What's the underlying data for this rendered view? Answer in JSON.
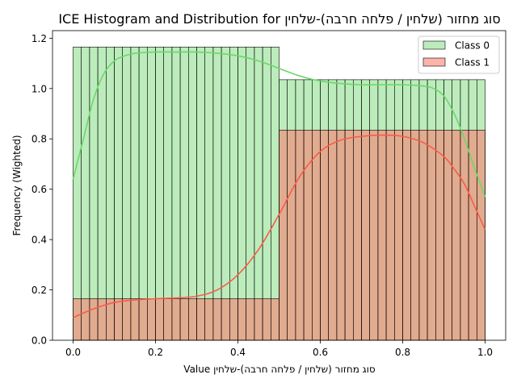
{
  "chart_data": {
    "type": "bar",
    "title": "ICE Histogram and Distribution for סוג מחזור (שלחין / פלחה חרבה)-שלחין",
    "xlabel": "סוג מחזור (שלחין / פלחה חרבה)-שלחין Value",
    "ylabel": "Frequency (Wighted)",
    "xlim": [
      -0.05,
      1.05
    ],
    "ylim": [
      0,
      1.23
    ],
    "xticks": [
      0.0,
      0.2,
      0.4,
      0.6,
      0.8,
      1.0
    ],
    "xtick_labels": [
      "0.0",
      "0.2",
      "0.4",
      "0.6",
      "0.8",
      "1.0"
    ],
    "yticks": [
      0.0,
      0.2,
      0.4,
      0.6,
      0.8,
      1.0,
      1.2
    ],
    "ytick_labels": [
      "0.0",
      "0.2",
      "0.4",
      "0.6",
      "0.8",
      "1.0",
      "1.2"
    ],
    "bin_edges": [
      0.0,
      0.02,
      0.04,
      0.06,
      0.08,
      0.1,
      0.12,
      0.14,
      0.16,
      0.18,
      0.2,
      0.22,
      0.24,
      0.26,
      0.28,
      0.3,
      0.32,
      0.34,
      0.36,
      0.38,
      0.4,
      0.42,
      0.44,
      0.46,
      0.48,
      0.5,
      0.52,
      0.54,
      0.56,
      0.58,
      0.6,
      0.62,
      0.64,
      0.66,
      0.68,
      0.7,
      0.72,
      0.74,
      0.76,
      0.78,
      0.8,
      0.82,
      0.84,
      0.86,
      0.88,
      0.9,
      0.92,
      0.94,
      0.96,
      0.98,
      1.0
    ],
    "legend_position": "upper right",
    "series": [
      {
        "name": "Class 0",
        "color": "#90e090",
        "line_color": "#6ad86a",
        "bin_values": [
          1.165,
          1.165,
          1.165,
          1.165,
          1.165,
          1.165,
          1.165,
          1.165,
          1.165,
          1.165,
          1.165,
          1.165,
          1.165,
          1.165,
          1.165,
          1.165,
          1.165,
          1.165,
          1.165,
          1.165,
          1.165,
          1.165,
          1.165,
          1.165,
          1.165,
          1.035,
          1.035,
          1.035,
          1.035,
          1.035,
          1.035,
          1.035,
          1.035,
          1.035,
          1.035,
          1.035,
          1.035,
          1.035,
          1.035,
          1.035,
          1.035,
          1.035,
          1.035,
          1.035,
          1.035,
          1.035,
          1.035,
          1.035,
          1.035,
          1.035
        ],
        "kde_x": [
          0.0,
          0.025,
          0.05,
          0.075,
          0.1,
          0.125,
          0.15,
          0.2,
          0.25,
          0.3,
          0.35,
          0.4,
          0.45,
          0.5,
          0.55,
          0.6,
          0.65,
          0.7,
          0.75,
          0.8,
          0.85,
          0.875,
          0.9,
          0.925,
          0.95,
          0.975,
          1.0
        ],
        "kde_y": [
          0.64,
          0.8,
          0.96,
          1.06,
          1.11,
          1.13,
          1.14,
          1.145,
          1.145,
          1.145,
          1.14,
          1.13,
          1.11,
          1.08,
          1.05,
          1.03,
          1.02,
          1.015,
          1.015,
          1.015,
          1.01,
          1.0,
          0.97,
          0.9,
          0.8,
          0.68,
          0.57
        ]
      },
      {
        "name": "Class 1",
        "color": "#fa8072",
        "line_color": "#fa5b4a",
        "bin_values": [
          0.165,
          0.165,
          0.165,
          0.165,
          0.165,
          0.165,
          0.165,
          0.165,
          0.165,
          0.165,
          0.165,
          0.165,
          0.165,
          0.165,
          0.165,
          0.165,
          0.165,
          0.165,
          0.165,
          0.165,
          0.165,
          0.165,
          0.165,
          0.165,
          0.165,
          0.835,
          0.835,
          0.835,
          0.835,
          0.835,
          0.835,
          0.835,
          0.835,
          0.835,
          0.835,
          0.835,
          0.835,
          0.835,
          0.835,
          0.835,
          0.835,
          0.835,
          0.835,
          0.835,
          0.835,
          0.835,
          0.835,
          0.835,
          0.835,
          0.835
        ],
        "kde_x": [
          0.0,
          0.05,
          0.1,
          0.15,
          0.2,
          0.25,
          0.3,
          0.35,
          0.4,
          0.45,
          0.5,
          0.55,
          0.6,
          0.65,
          0.7,
          0.75,
          0.8,
          0.85,
          0.9,
          0.925,
          0.95,
          0.975,
          1.0
        ],
        "kde_y": [
          0.09,
          0.125,
          0.15,
          0.16,
          0.165,
          0.168,
          0.175,
          0.2,
          0.26,
          0.36,
          0.5,
          0.65,
          0.75,
          0.795,
          0.81,
          0.815,
          0.81,
          0.785,
          0.73,
          0.68,
          0.62,
          0.53,
          0.44
        ]
      }
    ]
  }
}
